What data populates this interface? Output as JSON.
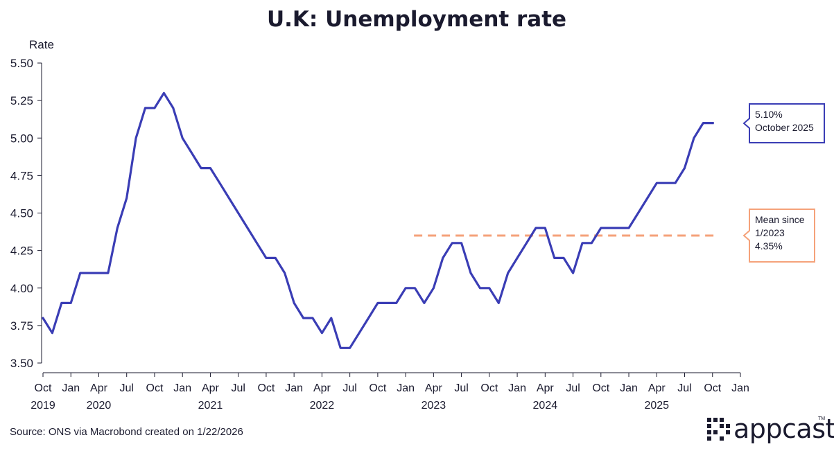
{
  "chart_data": {
    "type": "line",
    "title": "U.K: Unemployment rate",
    "ylabel": "Rate",
    "ylim": [
      3.5,
      5.5
    ],
    "yticks": [
      "5.50",
      "5.25",
      "5.00",
      "4.75",
      "4.50",
      "4.25",
      "4.00",
      "3.75",
      "3.50"
    ],
    "x_start": "2019-10",
    "x_end": "2026-01",
    "month_ticks": [
      "Oct",
      "Jan",
      "Apr",
      "Jul",
      "Oct",
      "Jan",
      "Apr",
      "Jul",
      "Oct",
      "Jan",
      "Apr",
      "Jul",
      "Oct",
      "Jan",
      "Apr",
      "Jul",
      "Oct",
      "Jan",
      "Apr",
      "Jul",
      "Oct",
      "Jan",
      "Apr",
      "Jul",
      "Oct",
      "Jan"
    ],
    "year_ticks": [
      {
        "label": "2019",
        "month": "2019-10"
      },
      {
        "label": "2020",
        "month": "2020-04"
      },
      {
        "label": "2021",
        "month": "2021-04"
      },
      {
        "label": "2022",
        "month": "2022-04"
      },
      {
        "label": "2023",
        "month": "2023-04"
      },
      {
        "label": "2024",
        "month": "2024-04"
      },
      {
        "label": "2025",
        "month": "2025-04"
      }
    ],
    "series": [
      {
        "color": "#3a3db5",
        "x": [
          "2019-10",
          "2019-11",
          "2019-12",
          "2020-01",
          "2020-02",
          "2020-03",
          "2020-04",
          "2020-05",
          "2020-06",
          "2020-07",
          "2020-08",
          "2020-09",
          "2020-10",
          "2020-11",
          "2020-12",
          "2021-01",
          "2021-02",
          "2021-03",
          "2021-04",
          "2021-05",
          "2021-06",
          "2021-07",
          "2021-08",
          "2021-09",
          "2021-10",
          "2021-11",
          "2021-12",
          "2022-01",
          "2022-02",
          "2022-03",
          "2022-04",
          "2022-05",
          "2022-06",
          "2022-07",
          "2022-08",
          "2022-09",
          "2022-10",
          "2022-11",
          "2022-12",
          "2023-01",
          "2023-02",
          "2023-03",
          "2023-04",
          "2023-05",
          "2023-06",
          "2023-07",
          "2023-08",
          "2023-09",
          "2023-10",
          "2023-11",
          "2023-12",
          "2024-01",
          "2024-02",
          "2024-03",
          "2024-04",
          "2024-05",
          "2024-06",
          "2024-07",
          "2024-08",
          "2024-09",
          "2024-10",
          "2024-11",
          "2024-12",
          "2025-01",
          "2025-02",
          "2025-03",
          "2025-04",
          "2025-05",
          "2025-06",
          "2025-07",
          "2025-08",
          "2025-09",
          "2025-10"
        ],
        "values": [
          3.8,
          3.7,
          3.9,
          3.9,
          4.1,
          4.1,
          4.1,
          4.1,
          4.4,
          4.6,
          5.0,
          5.2,
          5.2,
          5.3,
          5.2,
          5.0,
          4.9,
          4.8,
          4.8,
          4.7,
          4.6,
          4.5,
          4.4,
          4.3,
          4.2,
          4.2,
          4.1,
          3.9,
          3.8,
          3.8,
          3.7,
          3.8,
          3.6,
          3.6,
          3.7,
          3.8,
          3.9,
          3.9,
          3.9,
          4.0,
          4.0,
          3.9,
          4.0,
          4.2,
          4.3,
          4.3,
          4.1,
          4.0,
          4.0,
          3.9,
          4.1,
          4.2,
          4.3,
          4.4,
          4.4,
          4.2,
          4.2,
          4.1,
          4.3,
          4.3,
          4.4,
          4.4,
          4.4,
          4.4,
          4.5,
          4.6,
          4.7,
          4.7,
          4.7,
          4.8,
          5.0,
          5.1,
          5.1
        ]
      }
    ],
    "mean_line": {
      "value": 4.35,
      "from": "2023-01",
      "to": "2025-10",
      "color": "#f5a27a"
    },
    "annotations": [
      {
        "lines": [
          "5.10%",
          "October 2025"
        ],
        "color": "#3a3db5"
      },
      {
        "lines": [
          "Mean since",
          "1/2023",
          "4.35%"
        ],
        "color": "#f5a27a"
      }
    ],
    "grid": false
  },
  "footer": {
    "source": "Source: ONS via Macrobond created on 1/22/2026",
    "logo_text": "appcast",
    "logo_tm": "TM"
  }
}
